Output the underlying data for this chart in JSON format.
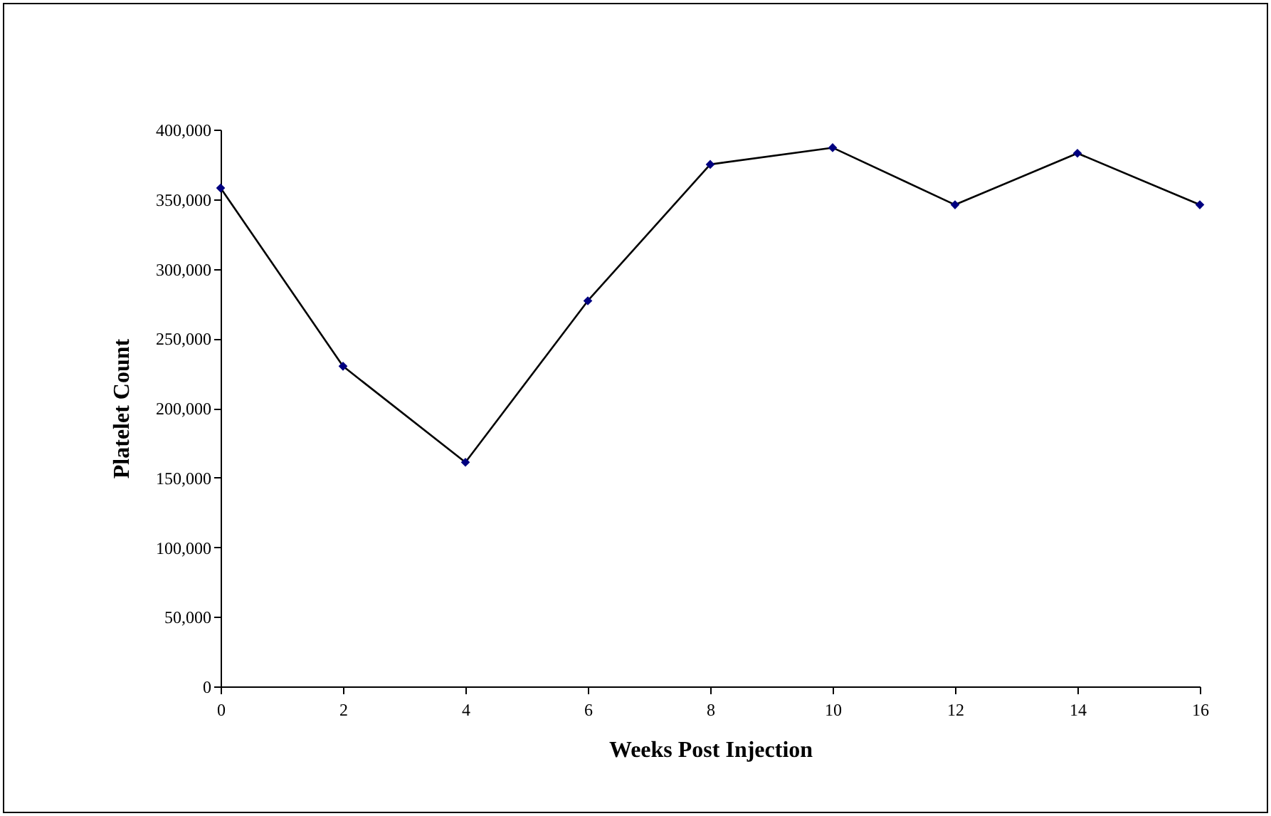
{
  "chart_data": {
    "type": "line",
    "xlabel": "Weeks Post Injection",
    "ylabel": "Platelet Count",
    "x": [
      0,
      2,
      4,
      6,
      8,
      10,
      12,
      14,
      16
    ],
    "series": [
      {
        "color": "#000080",
        "values": [
          358000,
          230000,
          161000,
          277000,
          375000,
          387000,
          346000,
          383000,
          346000
        ]
      }
    ],
    "xlim": [
      0,
      16
    ],
    "xticks": [
      0,
      2,
      4,
      6,
      8,
      10,
      12,
      14,
      16
    ],
    "ylim": [
      0,
      400000
    ],
    "yticks": [
      0,
      {
        "value": 50000,
        "label": "50,000"
      },
      {
        "value": 100000,
        "label": "100,000"
      },
      {
        "value": 150000,
        "label": "150,000"
      },
      {
        "value": 200000,
        "label": "200,000"
      },
      {
        "value": 250000,
        "label": "250,000"
      },
      {
        "value": 300000,
        "label": "300,000"
      },
      {
        "value": 350000,
        "label": "350,000"
      },
      {
        "value": 400000,
        "label": "400,000"
      }
    ],
    "grid": false,
    "legend": false,
    "marker": "diamond",
    "line_style": "solid"
  }
}
